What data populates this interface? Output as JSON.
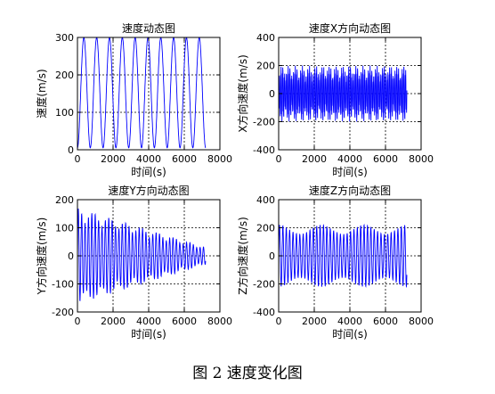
{
  "caption": "图 2  速度变化图",
  "colors": {
    "line": "#0000ff",
    "grid": "#000000",
    "axes": "#000000"
  },
  "chart_data": [
    {
      "type": "line",
      "title": "速度动态图",
      "xlabel": "时间(s)",
      "ylabel": "速度(m/s)",
      "xlim": [
        0,
        8000
      ],
      "ylim": [
        0,
        300
      ],
      "xticks": [
        0,
        2000,
        4000,
        6000,
        8000
      ],
      "yticks": [
        0,
        100,
        200,
        300
      ],
      "grid": true,
      "x_end": 7200,
      "oscillation": {
        "period_s": 720,
        "min": 5,
        "max": 300,
        "envelope": "constant"
      }
    },
    {
      "type": "line",
      "title": "速度X方向动态图",
      "xlabel": "时间(s)",
      "ylabel": "X方向速度(m/s)",
      "xlim": [
        0,
        8000
      ],
      "ylim": [
        -400,
        400
      ],
      "xticks": [
        0,
        2000,
        4000,
        6000,
        8000
      ],
      "yticks": [
        -400,
        -200,
        0,
        200,
        400
      ],
      "grid": true,
      "x_end": 7200,
      "oscillation": {
        "period_s": 100,
        "amplitude": 250,
        "envelope": "spiky-beating"
      }
    },
    {
      "type": "line",
      "title": "速度Y方向动态图",
      "xlabel": "时间(s)",
      "ylabel": "Y方向速度(m/s)",
      "xlim": [
        0,
        8000
      ],
      "ylim": [
        -200,
        200
      ],
      "xticks": [
        0,
        2000,
        4000,
        6000,
        8000
      ],
      "yticks": [
        -200,
        -100,
        0,
        100,
        200
      ],
      "grid": true,
      "x_end": 7200,
      "oscillation": {
        "period_s": 190,
        "amplitude_start": 170,
        "amplitude_end": 30,
        "envelope": "decaying"
      }
    },
    {
      "type": "line",
      "title": "速度Z方向动态图",
      "xlabel": "时间(s)",
      "ylabel": "Z方向速度(m/s)",
      "xlim": [
        0,
        8000
      ],
      "ylim": [
        -400,
        400
      ],
      "xticks": [
        0,
        2000,
        4000,
        6000,
        8000
      ],
      "yticks": [
        -400,
        -200,
        0,
        200,
        400
      ],
      "grid": true,
      "x_end": 7200,
      "oscillation": {
        "period_s": 190,
        "amplitude": 220,
        "envelope": "near-constant"
      }
    }
  ]
}
